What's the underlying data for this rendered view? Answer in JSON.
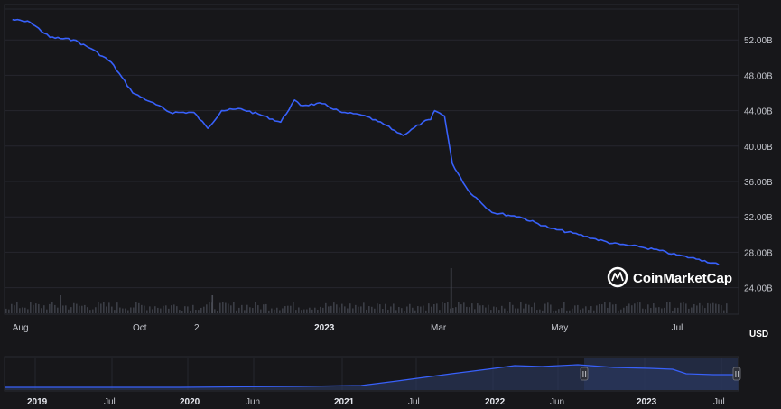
{
  "chart_data": {
    "type": "line",
    "title": "",
    "ylabel": "",
    "unit_label": "USD",
    "brand": "CoinMarketCap",
    "colors": {
      "line": "#3861fb",
      "volume": "#3b3d45",
      "background": "#17171a",
      "grid": "#26272e"
    },
    "grid": true,
    "y_axis_position": "right",
    "ylim": [
      21000000000,
      56000000000
    ],
    "y_ticks": [
      "24.00B",
      "28.00B",
      "32.00B",
      "36.00B",
      "40.00B",
      "44.00B",
      "48.00B",
      "52.00B"
    ],
    "y_tick_values": [
      24000000000,
      28000000000,
      32000000000,
      36000000000,
      40000000000,
      44000000000,
      48000000000,
      52000000000
    ],
    "x_ticks": [
      {
        "label": "Aug",
        "date": "2022-08-01",
        "bold": false
      },
      {
        "label": "Oct",
        "date": "2022-10-01",
        "bold": false
      },
      {
        "label": "2",
        "date": "2022-11-02",
        "bold": false
      },
      {
        "label": "2023",
        "date": "2023-01-01",
        "bold": true
      },
      {
        "label": "Mar",
        "date": "2023-03-01",
        "bold": false
      },
      {
        "label": "May",
        "date": "2023-05-01",
        "bold": false
      },
      {
        "label": "Jul",
        "date": "2023-07-01",
        "bold": false
      }
    ],
    "x": [
      "2022-08-01",
      "2022-08-10",
      "2022-08-20",
      "2022-09-01",
      "2022-09-10",
      "2022-09-20",
      "2022-10-01",
      "2022-10-10",
      "2022-10-20",
      "2022-11-01",
      "2022-11-08",
      "2022-11-15",
      "2022-11-25",
      "2022-12-05",
      "2022-12-15",
      "2022-12-22",
      "2022-12-25",
      "2023-01-05",
      "2023-01-15",
      "2023-01-25",
      "2023-02-05",
      "2023-02-15",
      "2023-02-25",
      "2023-03-01",
      "2023-03-03",
      "2023-03-08",
      "2023-03-12",
      "2023-03-20",
      "2023-04-01",
      "2023-04-15",
      "2023-05-01",
      "2023-05-15",
      "2023-06-01",
      "2023-06-15",
      "2023-06-25",
      "2023-07-01",
      "2023-07-15",
      "2023-07-25"
    ],
    "series": [
      {
        "values": [
          54300000000,
          54000000000,
          52300000000,
          52000000000,
          51000000000,
          49500000000,
          46000000000,
          45000000000,
          43800000000,
          43800000000,
          42000000000,
          44000000000,
          44200000000,
          43500000000,
          42700000000,
          45200000000,
          44600000000,
          44800000000,
          43800000000,
          43500000000,
          42500000000,
          41200000000,
          42700000000,
          43000000000,
          44000000000,
          43400000000,
          38000000000,
          35000000000,
          32500000000,
          32000000000,
          30700000000,
          30000000000,
          29000000000,
          28600000000,
          28200000000,
          27800000000,
          27200000000,
          26600000000
        ]
      }
    ],
    "volume_spikes": [
      {
        "date": "2022-08-25",
        "value": "small"
      },
      {
        "date": "2022-11-10",
        "value": "small"
      },
      {
        "date": "2023-03-11",
        "value": "large"
      }
    ],
    "navigator": {
      "x_ticks": [
        {
          "label": "2019",
          "bold": true
        },
        {
          "label": "Jul",
          "bold": false
        },
        {
          "label": "2020",
          "bold": true
        },
        {
          "label": "Jun",
          "bold": false
        },
        {
          "label": "2021",
          "bold": true
        },
        {
          "label": "Jul",
          "bold": false
        },
        {
          "label": "2022",
          "bold": true
        },
        {
          "label": "Jun",
          "bold": false
        },
        {
          "label": "2023",
          "bold": true
        },
        {
          "label": "Jul",
          "bold": false
        }
      ],
      "handle_label": "II"
    }
  }
}
